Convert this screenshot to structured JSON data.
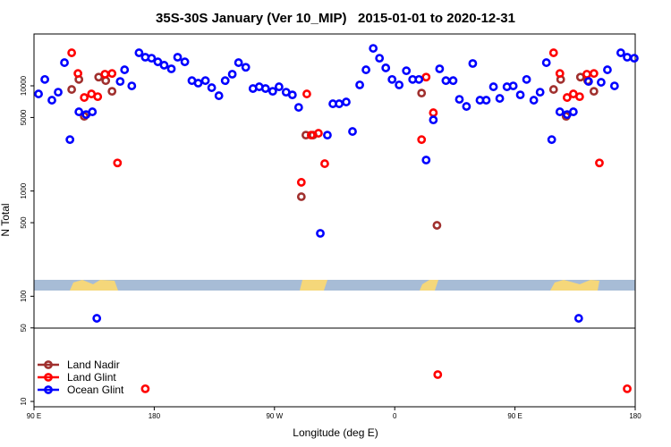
{
  "chart_data": {
    "type": "scatter",
    "title": "35S-30S January (Ver 10_MIP)   2015-01-01 to 2020-12-31",
    "x_label": "Longitude (deg E)",
    "y_label": "N Total",
    "xlim": [
      90,
      540
    ],
    "ylim": [
      8.9,
      31100
    ],
    "y_scale": "log",
    "legend": "lower left",
    "xticks": [
      {
        "value": 90,
        "label": "90 E"
      },
      180,
      {
        "value": 270,
        "label": "90 W"
      },
      {
        "value": 360,
        "label": "0"
      },
      {
        "value": 450,
        "label": "90 E"
      },
      {
        "value": 540,
        "label": "180"
      }
    ],
    "yticks": [
      10,
      50,
      100,
      500,
      1000,
      5000,
      10000
    ],
    "series": [
      {
        "name": "Land Nadir",
        "color": "#a0302e",
        "x": [
          118.2,
          123.6,
          127.6,
          138.4,
          143.7,
          148.4,
          290.1,
          293.5,
          298.9,
          380.1,
          391.6,
          478.9,
          484.2,
          488.3,
          499.0,
          504.4,
          509.1
        ],
        "values": [
          9230,
          11500,
          5130,
          12100,
          11200,
          8870,
          883,
          3400,
          3400,
          8530,
          472,
          9230,
          11500,
          5130,
          12100,
          11200,
          8870
        ]
      },
      {
        "name": "Land Glint",
        "color": "#ff0000",
        "x": [
          118.2,
          122.9,
          127.6,
          133.0,
          137.7,
          143.1,
          148.4,
          152.5,
          173.3,
          290.1,
          294.2,
          297.5,
          302.9,
          307.6,
          380.1,
          383.5,
          388.9,
          392.2,
          478.9,
          483.6,
          489.0,
          493.7,
          498.4,
          503.8,
          509.1,
          513.2,
          534.0
        ],
        "values": [
          20600,
          13100,
          7740,
          8370,
          7890,
          12900,
          13100,
          1850,
          13.2,
          1210,
          8370,
          3400,
          3540,
          1820,
          3080,
          12100,
          5550,
          18.0,
          20600,
          13100,
          7740,
          8370,
          7890,
          12900,
          13100,
          1850,
          13.2
        ]
      },
      {
        "name": "Ocean Glint",
        "color": "#0000ff",
        "x": [
          93.4,
          98.1,
          103.4,
          108.1,
          112.8,
          116.9,
          123.6,
          129.0,
          133.7,
          137.0,
          154.5,
          157.8,
          163.2,
          168.6,
          173.3,
          178.0,
          182.7,
          187.4,
          192.8,
          197.5,
          202.9,
          208.2,
          212.9,
          218.3,
          223.0,
          228.4,
          233.1,
          238.4,
          243.1,
          248.5,
          253.9,
          258.6,
          263.3,
          268.7,
          273.4,
          278.7,
          283.4,
          288.1,
          304.3,
          309.6,
          313.7,
          318.4,
          323.7,
          328.4,
          333.8,
          338.5,
          343.9,
          348.6,
          353.3,
          358.0,
          363.3,
          368.7,
          373.4,
          378.1,
          383.5,
          388.9,
          393.6,
          398.3,
          403.7,
          408.4,
          413.7,
          418.4,
          423.8,
          428.5,
          433.9,
          438.6,
          444.0,
          448.7,
          454.0,
          458.7,
          464.1,
          468.8,
          473.5,
          477.5,
          483.6,
          489.0,
          493.7,
          497.7,
          505.1,
          514.5,
          519.2,
          524.5,
          529.2,
          534.0,
          539.3
        ],
        "values": [
          8370,
          11500,
          7300,
          8700,
          16600,
          3080,
          5660,
          5330,
          5660,
          61.7,
          11000,
          14200,
          9980,
          20600,
          18700,
          18300,
          16900,
          15700,
          14500,
          18700,
          16900,
          11200,
          10600,
          11200,
          9600,
          8050,
          11200,
          12900,
          16600,
          15000,
          9420,
          9790,
          9420,
          8870,
          9790,
          8700,
          8200,
          6240,
          396,
          3400,
          6750,
          6750,
          7020,
          3680,
          10200,
          14200,
          22700,
          18300,
          14800,
          11500,
          10200,
          13900,
          11500,
          11500,
          1970,
          4740,
          14500,
          11200,
          11200,
          7440,
          6370,
          16300,
          7300,
          7300,
          9790,
          7590,
          9790,
          9980,
          8200,
          11500,
          7300,
          8700,
          16600,
          3080,
          5660,
          5330,
          5660,
          61.7,
          11000,
          10800,
          14200,
          9980,
          20600,
          18700,
          18300
        ]
      }
    ]
  }
}
